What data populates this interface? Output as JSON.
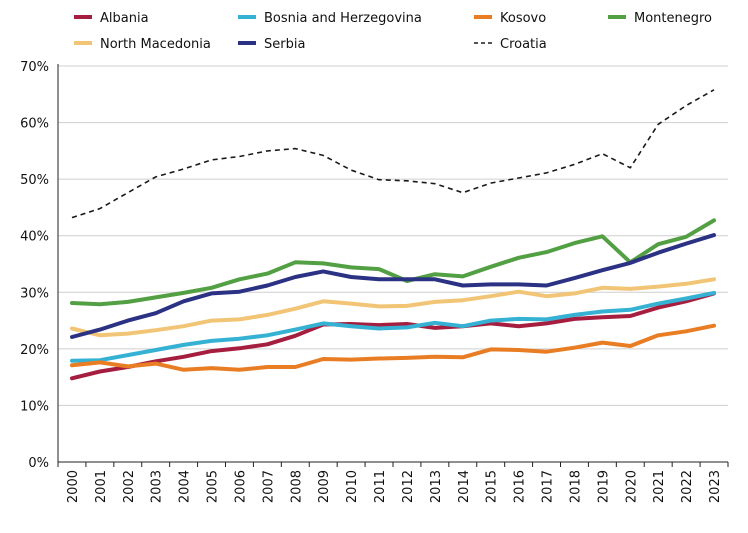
{
  "chart_data": {
    "type": "line",
    "title": "",
    "xlabel": "",
    "ylabel": "",
    "ylim": [
      0,
      70
    ],
    "yticks": [
      "0%",
      "10%",
      "20%",
      "30%",
      "40%",
      "50%",
      "60%",
      "70%"
    ],
    "grid": "horizontal",
    "legend_position": "top",
    "categories": [
      "2000",
      "2001",
      "2002",
      "2003",
      "2004",
      "2005",
      "2006",
      "2007",
      "2008",
      "2009",
      "2010",
      "2011",
      "2012",
      "2013",
      "2014",
      "2015",
      "2016",
      "2017",
      "2018",
      "2019",
      "2020",
      "2021",
      "2022",
      "2023"
    ],
    "series": [
      {
        "name": "Albania",
        "color": "#a51e3f",
        "dash": false,
        "values": [
          14.8,
          16.0,
          16.8,
          17.8,
          18.6,
          19.6,
          20.1,
          20.8,
          22.3,
          24.3,
          24.4,
          24.2,
          24.4,
          23.7,
          24.0,
          24.5,
          24.0,
          24.5,
          25.3,
          25.6,
          25.8,
          27.3,
          28.4,
          29.8
        ]
      },
      {
        "name": "Bosnia and Herzegovina",
        "color": "#35b2d3",
        "dash": false,
        "values": [
          17.9,
          18.0,
          18.9,
          19.8,
          20.7,
          21.4,
          21.8,
          22.4,
          23.4,
          24.5,
          24.0,
          23.6,
          23.8,
          24.6,
          24.0,
          25.0,
          25.3,
          25.2,
          26.0,
          26.6,
          26.9,
          28.0,
          28.9,
          29.9
        ]
      },
      {
        "name": "Kosovo",
        "color": "#e97d24",
        "dash": false,
        "values": [
          17.1,
          17.6,
          16.9,
          17.4,
          16.3,
          16.6,
          16.3,
          16.8,
          16.8,
          18.2,
          18.1,
          18.3,
          18.4,
          18.6,
          18.5,
          19.9,
          19.8,
          19.5,
          20.2,
          21.1,
          20.5,
          22.4,
          23.1,
          24.1
        ]
      },
      {
        "name": "Montenegro",
        "color": "#52a043",
        "dash": false,
        "values": [
          28.1,
          27.9,
          28.3,
          29.1,
          29.9,
          30.8,
          32.3,
          33.3,
          35.3,
          35.1,
          34.4,
          34.1,
          32.0,
          33.2,
          32.8,
          34.5,
          36.1,
          37.1,
          38.7,
          39.9,
          35.3,
          38.5,
          39.8,
          42.7
        ]
      },
      {
        "name": "North Macedonia",
        "color": "#f1c575",
        "dash": false,
        "values": [
          23.6,
          22.4,
          22.7,
          23.3,
          24.0,
          25.0,
          25.2,
          26.0,
          27.1,
          28.4,
          28.0,
          27.5,
          27.6,
          28.3,
          28.6,
          29.3,
          30.1,
          29.3,
          29.8,
          30.8,
          30.6,
          31.0,
          31.5,
          32.3
        ]
      },
      {
        "name": "Serbia",
        "color": "#2c3283",
        "dash": false,
        "values": [
          22.1,
          23.4,
          25.0,
          26.3,
          28.4,
          29.8,
          30.1,
          31.2,
          32.7,
          33.7,
          32.7,
          32.3,
          32.3,
          32.3,
          31.2,
          31.4,
          31.4,
          31.2,
          32.5,
          33.9,
          35.2,
          37.0,
          38.6,
          40.1
        ]
      },
      {
        "name": "Croatia",
        "color": "#1a1a1a",
        "dash": true,
        "values": [
          43.2,
          44.8,
          47.6,
          50.4,
          51.8,
          53.4,
          54.0,
          55.0,
          55.4,
          54.2,
          51.6,
          49.9,
          49.7,
          49.2,
          47.6,
          49.3,
          50.2,
          51.1,
          52.6,
          54.5,
          52.0,
          59.7,
          63.0,
          65.8
        ]
      }
    ]
  }
}
